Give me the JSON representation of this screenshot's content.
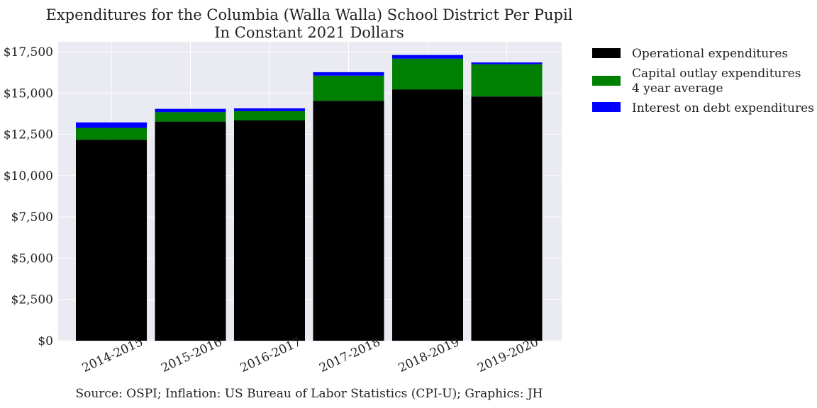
{
  "chart_data": {
    "type": "bar",
    "stacked": true,
    "title": [
      "Expenditures for the Columbia (Walla Walla) School District Per Pupil",
      "In Constant 2021 Dollars"
    ],
    "xlabel": "",
    "ylabel": "",
    "categories": [
      "2014-2015",
      "2015-2016",
      "2016-2017",
      "2017-2018",
      "2018-2019",
      "2019-2020"
    ],
    "series": [
      {
        "name": "Operational expenditures",
        "color": "#000000",
        "values": [
          12170,
          13270,
          13340,
          14530,
          15220,
          14790
        ]
      },
      {
        "name": "Capital outlay expenditures\n4 year average",
        "color": "#008000",
        "values": [
          720,
          570,
          560,
          1520,
          1860,
          1950
        ]
      },
      {
        "name": "Interest on debt expenditures",
        "color": "#0000ff",
        "values": [
          330,
          200,
          170,
          210,
          220,
          110
        ]
      }
    ],
    "ylim": [
      0,
      17500
    ],
    "yticks": [
      0,
      2500,
      5000,
      7500,
      10000,
      12500,
      15000,
      17500
    ],
    "ytick_labels": [
      "$0",
      "$2,500",
      "$5,000",
      "$7,500",
      "$10,000",
      "$12,500",
      "$15,000",
      "$17,500"
    ],
    "grid": true,
    "legend_position": "outside-top-right",
    "plot_background": "#eaeaf2",
    "source": "Source: OSPI; Inflation: US Bureau of Labor Statistics (CPI-U); Graphics: JH"
  }
}
